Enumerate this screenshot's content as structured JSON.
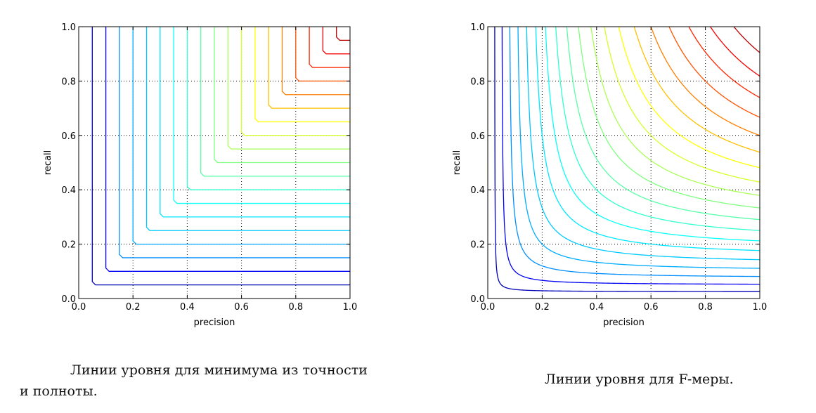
{
  "chart_data": [
    {
      "type": "line",
      "xlabel": "precision",
      "ylabel": "recall",
      "xlim": [
        0,
        1
      ],
      "ylim": [
        0,
        1
      ],
      "xticks": [
        "0.0",
        "0.2",
        "0.4",
        "0.6",
        "0.8",
        "1.0"
      ],
      "yticks": [
        "0.0",
        "0.2",
        "0.4",
        "0.6",
        "0.8",
        "1.0"
      ],
      "grid": true,
      "function": "min(precision, recall)",
      "levels": [
        0.05,
        0.1,
        0.15,
        0.2,
        0.25,
        0.3,
        0.35,
        0.4,
        0.45,
        0.5,
        0.55,
        0.6,
        0.65,
        0.7,
        0.75,
        0.8,
        0.85,
        0.9,
        0.95
      ],
      "colormap": "jet",
      "caption": [
        "Линии уровня для минимума из точности",
        "и полноты."
      ]
    },
    {
      "type": "line",
      "xlabel": "precision",
      "ylabel": "recall",
      "xlim": [
        0,
        1
      ],
      "ylim": [
        0,
        1
      ],
      "xticks": [
        "0.0",
        "0.2",
        "0.4",
        "0.6",
        "0.8",
        "1.0"
      ],
      "yticks": [
        "0.0",
        "0.2",
        "0.4",
        "0.6",
        "0.8",
        "1.0"
      ],
      "grid": true,
      "function": "2*precision*recall/(precision+recall)",
      "levels": [
        0.05,
        0.1,
        0.15,
        0.2,
        0.25,
        0.3,
        0.35,
        0.4,
        0.45,
        0.5,
        0.55,
        0.6,
        0.65,
        0.7,
        0.75,
        0.8,
        0.85,
        0.9,
        0.95
      ],
      "colormap": "jet",
      "caption": [
        "Линии уровня для F-меры."
      ]
    }
  ],
  "colors": {
    "jet_stops": [
      "#00007f",
      "#0000ff",
      "#007fff",
      "#00ffff",
      "#7fff7f",
      "#ffff00",
      "#ff7f00",
      "#ff0000",
      "#7f0000"
    ]
  }
}
